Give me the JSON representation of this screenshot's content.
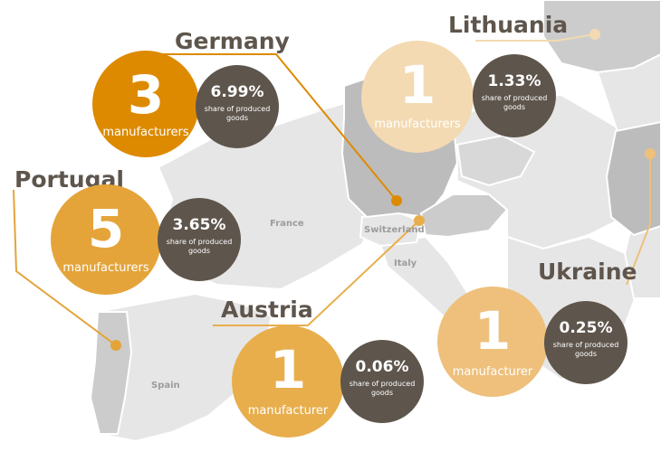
{
  "colors": {
    "land_light": "#e6e6e6",
    "land_mid": "#cccccc",
    "highlight_country": "#bcbcbc",
    "border": "#ffffff",
    "dark_circle": "#5e554c",
    "germany": "#dd8a00",
    "portugal": "#e4a43a",
    "austria": "#e8ae4c",
    "ukraine": "#eec07c",
    "lithuania": "#f3dab2"
  },
  "map_labels": {
    "france": "France",
    "switzerland": "Switzerland",
    "italy": "Italy",
    "spain": "Spain"
  },
  "countries": {
    "germany": {
      "name": "Germany",
      "count": "3",
      "unit": "manufacturers",
      "share": "6.99%",
      "share_label": "share of produced goods"
    },
    "lithuania": {
      "name": "Lithuania",
      "count": "1",
      "unit": "manufacturers",
      "share": "1.33%",
      "share_label": "share of produced goods"
    },
    "portugal": {
      "name": "Portugal",
      "count": "5",
      "unit": "manufacturers",
      "share": "3.65%",
      "share_label": "share of produced goods"
    },
    "austria": {
      "name": "Austria",
      "count": "1",
      "unit": "manufacturer",
      "share": "0.06%",
      "share_label": "share of produced goods"
    },
    "ukraine": {
      "name": "Ukraine",
      "count": "1",
      "unit": "manufacturer",
      "share": "0.25%",
      "share_label": "share of produced goods"
    }
  }
}
